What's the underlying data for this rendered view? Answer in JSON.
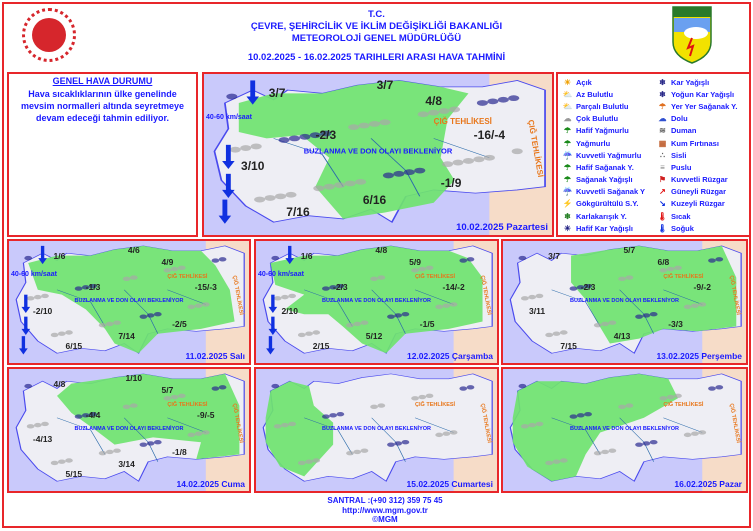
{
  "header": {
    "line1": "T.C.",
    "line2": "ÇEVRE, ŞEHİRCİLİK VE İKLİM DEĞİŞİKLİĞİ BAKANLIĞI",
    "line3": "METEOROLOJİ  GENEL  MÜDÜRLÜĞÜ",
    "line4": "10.02.2025  -  16.02.2025   TARIHLERI  ARASI  HAVA  TAHMİNİ",
    "logo_right_text": "METEOROLOJİ"
  },
  "genel": {
    "title": "GENEL HAVA DURUMU",
    "text": "Hava sıcaklıklarının ülke genelinde mevsim normalleri altında seyretmeye devam edeceği tahmin ediliyor."
  },
  "legend": [
    {
      "label": "Açık",
      "icon": "sun-icon",
      "glyph": "☀",
      "color": "#f0a000"
    },
    {
      "label": "Az Bulutlu",
      "icon": "sun-cloud-icon",
      "glyph": "⛅",
      "color": "#e0a000"
    },
    {
      "label": "Parçalı Bulutlu",
      "icon": "partly-cloudy-icon",
      "glyph": "⛅",
      "color": "#c0a040"
    },
    {
      "label": "Çok Bulutlu",
      "icon": "cloud-icon",
      "glyph": "☁",
      "color": "#999999"
    },
    {
      "label": "Hafif Yağmurlu",
      "icon": "light-rain-icon",
      "glyph": "☂",
      "color": "#1a8a1a"
    },
    {
      "label": "Yağmurlu",
      "icon": "rain-icon",
      "glyph": "☂",
      "color": "#1a8a1a"
    },
    {
      "label": "Kuvvetli Yağmurlu",
      "icon": "heavy-rain-icon",
      "glyph": "☔",
      "color": "#1a7a1a"
    },
    {
      "label": "Hafif Sağanak Y.",
      "icon": "light-shower-icon",
      "glyph": "☂",
      "color": "#1a8a1a"
    },
    {
      "label": "Sağanak Yağışlı",
      "icon": "shower-icon",
      "glyph": "☂",
      "color": "#1a8a1a"
    },
    {
      "label": "Kuvvetli Sağanak Y",
      "icon": "heavy-shower-icon",
      "glyph": "☔",
      "color": "#1a7a1a"
    },
    {
      "label": "Gökgürültülü S.Y.",
      "icon": "thunderstorm-icon",
      "glyph": "⚡",
      "color": "#d02020"
    },
    {
      "label": "Karlakarışık Y.",
      "icon": "sleet-icon",
      "glyph": "❄",
      "color": "#1a7a1a"
    },
    {
      "label": "Hafif Kar Yağışlı",
      "icon": "light-snow-icon",
      "glyph": "✳",
      "color": "#1a1a80"
    },
    {
      "label": "Kar Yağışlı",
      "icon": "snow-icon",
      "glyph": "❄",
      "color": "#1a1a80"
    },
    {
      "label": "Yoğun Kar Yağışlı",
      "icon": "heavy-snow-icon",
      "glyph": "❄",
      "color": "#1a1a80"
    },
    {
      "label": "Yer Yer Sağanak Y.",
      "icon": "scattered-shower-icon",
      "glyph": "☂",
      "color": "#e07020"
    },
    {
      "label": "Dolu",
      "icon": "hail-icon",
      "glyph": "☁",
      "color": "#3050d0"
    },
    {
      "label": "Duman",
      "icon": "smoke-icon",
      "glyph": "≋",
      "color": "#606060"
    },
    {
      "label": "Kum Fırtınası",
      "icon": "sandstorm-icon",
      "glyph": "▦",
      "color": "#c06030"
    },
    {
      "label": "Sisli",
      "icon": "fog-icon",
      "glyph": "∴",
      "color": "#606060"
    },
    {
      "label": "Puslu",
      "icon": "haze-icon",
      "glyph": "≡",
      "color": "#808080"
    },
    {
      "label": "Kuvvetli Rüzgar",
      "icon": "strong-wind-icon",
      "glyph": "⚑",
      "color": "#d02020"
    },
    {
      "label": "Güneyli Rüzgar",
      "icon": "south-wind-icon",
      "glyph": "↗",
      "color": "#e01010"
    },
    {
      "label": "Kuzeyli Rüzgar",
      "icon": "north-wind-icon",
      "glyph": "↘",
      "color": "#1030e0"
    },
    {
      "label": "Sıcak",
      "icon": "hot-icon",
      "glyph": "🌡",
      "color": "#e01010"
    },
    {
      "label": "Soğuk",
      "icon": "cold-icon",
      "glyph": "🌡",
      "color": "#1030e0"
    }
  ],
  "maps": [
    {
      "date": "10.02.2025 Pazartesi",
      "buzlanma": "BUZLANMA VE DON OLAYI BEKLENİYOR",
      "cig": "ÇIĞ TEHLİKESİ",
      "wind": "40-60 km/saat",
      "temps": [
        "3/7",
        "3/7",
        "4/8",
        "-2/3",
        "-16/-4",
        "3/10",
        "-1/9",
        "6/16",
        "7/16"
      ]
    },
    {
      "date": "11.02.2025 Salı",
      "buzlanma": "BUZLANMA VE DON OLAYI BEKLENİYOR",
      "cig": "ÇIĞ TEHLİKESİ",
      "wind": "40-60 km/saat",
      "temps": [
        "1/6",
        "4/6",
        "4/9",
        "-1/3",
        "-15/-3",
        "-2/10",
        "-2/5",
        "7/14",
        "6/15"
      ]
    },
    {
      "date": "12.02.2025 Çarşamba",
      "buzlanma": "BUZLANMA VE DON OLAYI BEKLENİYOR",
      "cig": "ÇIĞ TEHLİKESİ",
      "wind": "40-60 km/saat",
      "temps": [
        "1/6",
        "4/8",
        "5/9",
        "-2/3",
        "-14/-2",
        "2/10",
        "-1/5",
        "5/12",
        "2/15"
      ]
    },
    {
      "date": "13.02.2025 Perşembe",
      "buzlanma": "BUZLANMA VE DON OLAYI BEKLENİYOR",
      "cig": "ÇIĞ TEHLİKESİ",
      "temps": [
        "3/7",
        "5/7",
        "6/8",
        "-2/3",
        "-9/-2",
        "3/11",
        "-3/3",
        "4/13",
        "7/15"
      ]
    },
    {
      "date": "14.02.2025 Cuma",
      "buzlanma": "BUZLANMA VE DON OLAYI BEKLENİYOR",
      "cig": "ÇIĞ TEHLİKESİ",
      "temps": [
        "4/8",
        "1/10",
        "5/7",
        "-4/4",
        "-9/-5",
        "-4/13",
        "-1/8",
        "3/14",
        "5/15"
      ]
    },
    {
      "date": "15.02.2025 Cumartesi",
      "buzlanma": "BUZLANMA VE DON OLAYI BEKLENİYOR",
      "cig": "ÇIĞ TEHLİKESİ",
      "temps": []
    },
    {
      "date": "16.02.2025 Pazar",
      "buzlanma": "BUZLANMA VE DON OLAYI BEKLENİYOR",
      "cig": "ÇIĞ TEHLİKESİ",
      "temps": []
    }
  ],
  "footer": {
    "phone": "SANTRAL :(+90 312) 359 75 45",
    "url": "http://www.mgm.gov.tr",
    "copyright": "©MGM"
  }
}
